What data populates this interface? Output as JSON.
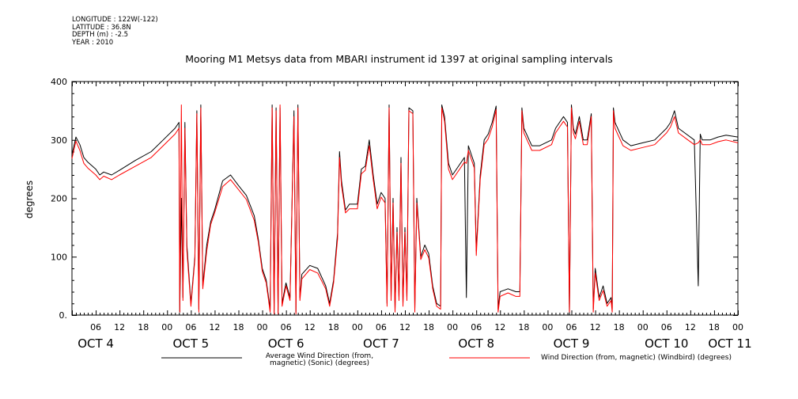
{
  "metadata": [
    "LONGITUDE : 122W(-122)",
    "LATITUDE : 36.8N",
    "DEPTH (m) : -2.5",
    "YEAR : 2010"
  ],
  "chart_data": {
    "type": "line",
    "title": "Mooring M1 Metsys data from MBARI instrument id 1397 at original sampling intervals",
    "ylabel": "degrees",
    "xlabel": "",
    "ylim": [
      0,
      400
    ],
    "xlim_hours": [
      0,
      168
    ],
    "y_ticks": [
      0,
      100,
      200,
      300,
      400
    ],
    "y_tick_labels": [
      "0.",
      "100",
      "200",
      "300",
      "400"
    ],
    "hour_ticks": [
      "06",
      "12",
      "18",
      "00",
      "06",
      "12",
      "18",
      "00",
      "06",
      "12",
      "18",
      "00",
      "06",
      "12",
      "18",
      "00",
      "06",
      "12",
      "18",
      "00",
      "06",
      "12",
      "18",
      "00",
      "06",
      "12",
      "18",
      "00"
    ],
    "day_labels": [
      "OCT  4",
      "OCT  5",
      "OCT  6",
      "OCT  7",
      "OCT  8",
      "OCT  9",
      "OCT 10",
      "OCT 11"
    ],
    "grid": false,
    "legend_placement": "bottom",
    "series": [
      {
        "name": "Average Wind Direction (from, magnetic) (Sonic) (degrees)",
        "color": "#000000",
        "points": [
          [
            0,
            275
          ],
          [
            1,
            305
          ],
          [
            2,
            292
          ],
          [
            3,
            270
          ],
          [
            4,
            262
          ],
          [
            6,
            250
          ],
          [
            7,
            240
          ],
          [
            8,
            245
          ],
          [
            10,
            240
          ],
          [
            12,
            248
          ],
          [
            16,
            265
          ],
          [
            20,
            280
          ],
          [
            23,
            300
          ],
          [
            26,
            320
          ],
          [
            27,
            330
          ],
          [
            27.2,
            5
          ],
          [
            27.6,
            200
          ],
          [
            28,
            30
          ],
          [
            28.5,
            330
          ],
          [
            29,
            120
          ],
          [
            30,
            20
          ],
          [
            31,
            100
          ],
          [
            31.5,
            350
          ],
          [
            32,
            10
          ],
          [
            32.5,
            360
          ],
          [
            33,
            50
          ],
          [
            34,
            120
          ],
          [
            35,
            160
          ],
          [
            36,
            180
          ],
          [
            38,
            230
          ],
          [
            40,
            240
          ],
          [
            42,
            222
          ],
          [
            44,
            205
          ],
          [
            46,
            170
          ],
          [
            47,
            130
          ],
          [
            48,
            80
          ],
          [
            49,
            60
          ],
          [
            50,
            10
          ],
          [
            50.5,
            360
          ],
          [
            51,
            5
          ],
          [
            51.5,
            355
          ],
          [
            52,
            5
          ],
          [
            52.5,
            355
          ],
          [
            53,
            20
          ],
          [
            54,
            55
          ],
          [
            55,
            30
          ],
          [
            56,
            350
          ],
          [
            56.5,
            5
          ],
          [
            57,
            360
          ],
          [
            57.5,
            30
          ],
          [
            58,
            70
          ],
          [
            60,
            85
          ],
          [
            62,
            80
          ],
          [
            64,
            50
          ],
          [
            65,
            20
          ],
          [
            66,
            60
          ],
          [
            67,
            140
          ],
          [
            67.5,
            280
          ],
          [
            68,
            230
          ],
          [
            69,
            180
          ],
          [
            70,
            190
          ],
          [
            72,
            190
          ],
          [
            73,
            250
          ],
          [
            74,
            255
          ],
          [
            75,
            300
          ],
          [
            76,
            240
          ],
          [
            77,
            190
          ],
          [
            78,
            210
          ],
          [
            79,
            200
          ],
          [
            79.5,
            20
          ],
          [
            80,
            360
          ],
          [
            80.5,
            30
          ],
          [
            81,
            200
          ],
          [
            81.5,
            10
          ],
          [
            82,
            150
          ],
          [
            82.5,
            30
          ],
          [
            83,
            270
          ],
          [
            83.5,
            20
          ],
          [
            84,
            150
          ],
          [
            84.5,
            30
          ],
          [
            85,
            355
          ],
          [
            86,
            350
          ],
          [
            86.5,
            10
          ],
          [
            87,
            200
          ],
          [
            88,
            100
          ],
          [
            89,
            120
          ],
          [
            90,
            105
          ],
          [
            91,
            50
          ],
          [
            92,
            20
          ],
          [
            93,
            15
          ],
          [
            93.3,
            360
          ],
          [
            94,
            340
          ],
          [
            95,
            260
          ],
          [
            96,
            240
          ],
          [
            97,
            250
          ],
          [
            99,
            270
          ],
          [
            99.5,
            30
          ],
          [
            100,
            290
          ],
          [
            101,
            270
          ],
          [
            101.5,
            260
          ],
          [
            102,
            110
          ],
          [
            103,
            240
          ],
          [
            104,
            300
          ],
          [
            105,
            310
          ],
          [
            106,
            330
          ],
          [
            107,
            358
          ],
          [
            107.5,
            10
          ],
          [
            108,
            40
          ],
          [
            110,
            45
          ],
          [
            112,
            40
          ],
          [
            113,
            40
          ],
          [
            113.5,
            355
          ],
          [
            114,
            320
          ],
          [
            116,
            290
          ],
          [
            118,
            290
          ],
          [
            121,
            300
          ],
          [
            122,
            320
          ],
          [
            123,
            330
          ],
          [
            124,
            340
          ],
          [
            125,
            330
          ],
          [
            125.5,
            0
          ],
          [
            126,
            360
          ],
          [
            126.5,
            320
          ],
          [
            127,
            310
          ],
          [
            128,
            340
          ],
          [
            129,
            300
          ],
          [
            130,
            300
          ],
          [
            131,
            345
          ],
          [
            131.5,
            10
          ],
          [
            132,
            80
          ],
          [
            133,
            30
          ],
          [
            134,
            50
          ],
          [
            135,
            20
          ],
          [
            136,
            30
          ],
          [
            136.3,
            10
          ],
          [
            136.6,
            355
          ],
          [
            137,
            330
          ],
          [
            139,
            300
          ],
          [
            141,
            290
          ],
          [
            144,
            295
          ],
          [
            147,
            300
          ],
          [
            150,
            320
          ],
          [
            151,
            330
          ],
          [
            152,
            350
          ],
          [
            153,
            320
          ],
          [
            155,
            310
          ],
          [
            157,
            300
          ],
          [
            158,
            50
          ],
          [
            158.5,
            310
          ],
          [
            159,
            300
          ],
          [
            161,
            300
          ],
          [
            163,
            305
          ],
          [
            165,
            308
          ],
          [
            168,
            305
          ]
        ]
      },
      {
        "name": "Wind Direction (from, magnetic) (Windbird) (degrees)",
        "color": "#ff0000",
        "points": [
          [
            0,
            268
          ],
          [
            1,
            298
          ],
          [
            2,
            282
          ],
          [
            3,
            260
          ],
          [
            4,
            252
          ],
          [
            6,
            240
          ],
          [
            7,
            232
          ],
          [
            8,
            238
          ],
          [
            10,
            232
          ],
          [
            12,
            240
          ],
          [
            16,
            255
          ],
          [
            20,
            270
          ],
          [
            23,
            290
          ],
          [
            26,
            310
          ],
          [
            27,
            320
          ],
          [
            27.2,
            5
          ],
          [
            27.6,
            360
          ],
          [
            28,
            25
          ],
          [
            28.5,
            320
          ],
          [
            29,
            110
          ],
          [
            30,
            15
          ],
          [
            31,
            95
          ],
          [
            31.5,
            345
          ],
          [
            32,
            5
          ],
          [
            32.5,
            355
          ],
          [
            33,
            45
          ],
          [
            34,
            110
          ],
          [
            35,
            155
          ],
          [
            36,
            175
          ],
          [
            38,
            220
          ],
          [
            40,
            232
          ],
          [
            42,
            215
          ],
          [
            44,
            198
          ],
          [
            46,
            162
          ],
          [
            47,
            125
          ],
          [
            48,
            75
          ],
          [
            49,
            55
          ],
          [
            50,
            5
          ],
          [
            50.5,
            355
          ],
          [
            51,
            2
          ],
          [
            51.5,
            350
          ],
          [
            52,
            2
          ],
          [
            52.5,
            360
          ],
          [
            53,
            15
          ],
          [
            54,
            50
          ],
          [
            55,
            25
          ],
          [
            56,
            340
          ],
          [
            56.5,
            2
          ],
          [
            57,
            355
          ],
          [
            57.5,
            25
          ],
          [
            58,
            62
          ],
          [
            60,
            78
          ],
          [
            62,
            72
          ],
          [
            64,
            45
          ],
          [
            65,
            15
          ],
          [
            66,
            55
          ],
          [
            67,
            130
          ],
          [
            67.5,
            270
          ],
          [
            68,
            222
          ],
          [
            69,
            175
          ],
          [
            70,
            182
          ],
          [
            72,
            182
          ],
          [
            73,
            242
          ],
          [
            74,
            248
          ],
          [
            75,
            290
          ],
          [
            76,
            232
          ],
          [
            77,
            182
          ],
          [
            78,
            202
          ],
          [
            79,
            192
          ],
          [
            79.5,
            15
          ],
          [
            80,
            355
          ],
          [
            80.5,
            25
          ],
          [
            81,
            192
          ],
          [
            81.5,
            5
          ],
          [
            82,
            142
          ],
          [
            82.5,
            25
          ],
          [
            83,
            260
          ],
          [
            83.5,
            15
          ],
          [
            84,
            142
          ],
          [
            84.5,
            25
          ],
          [
            85,
            350
          ],
          [
            86,
            345
          ],
          [
            86.5,
            5
          ],
          [
            87,
            192
          ],
          [
            88,
            95
          ],
          [
            89,
            112
          ],
          [
            90,
            98
          ],
          [
            91,
            45
          ],
          [
            92,
            15
          ],
          [
            93,
            10
          ],
          [
            93.3,
            355
          ],
          [
            94,
            332
          ],
          [
            95,
            250
          ],
          [
            96,
            232
          ],
          [
            97,
            242
          ],
          [
            99,
            262
          ],
          [
            99.5,
            260
          ],
          [
            100,
            282
          ],
          [
            101,
            262
          ],
          [
            101.5,
            252
          ],
          [
            102,
            102
          ],
          [
            103,
            232
          ],
          [
            104,
            292
          ],
          [
            105,
            302
          ],
          [
            106,
            322
          ],
          [
            107,
            352
          ],
          [
            107.5,
            5
          ],
          [
            108,
            32
          ],
          [
            110,
            38
          ],
          [
            112,
            32
          ],
          [
            113,
            32
          ],
          [
            113.5,
            350
          ],
          [
            114,
            312
          ],
          [
            116,
            282
          ],
          [
            118,
            282
          ],
          [
            121,
            292
          ],
          [
            122,
            312
          ],
          [
            123,
            322
          ],
          [
            124,
            332
          ],
          [
            125,
            322
          ],
          [
            125.5,
            5
          ],
          [
            126,
            355
          ],
          [
            126.5,
            312
          ],
          [
            127,
            302
          ],
          [
            128,
            332
          ],
          [
            129,
            292
          ],
          [
            130,
            292
          ],
          [
            131,
            340
          ],
          [
            131.5,
            5
          ],
          [
            132,
            72
          ],
          [
            133,
            25
          ],
          [
            134,
            42
          ],
          [
            135,
            15
          ],
          [
            136,
            25
          ],
          [
            136.3,
            5
          ],
          [
            136.6,
            350
          ],
          [
            137,
            320
          ],
          [
            139,
            290
          ],
          [
            141,
            282
          ],
          [
            144,
            287
          ],
          [
            147,
            292
          ],
          [
            150,
            312
          ],
          [
            151,
            322
          ],
          [
            152,
            340
          ],
          [
            153,
            312
          ],
          [
            155,
            302
          ],
          [
            157,
            292
          ],
          [
            158,
            295
          ],
          [
            158.5,
            300
          ],
          [
            159,
            292
          ],
          [
            161,
            292
          ],
          [
            163,
            297
          ],
          [
            165,
            300
          ],
          [
            168,
            295
          ]
        ]
      }
    ]
  }
}
